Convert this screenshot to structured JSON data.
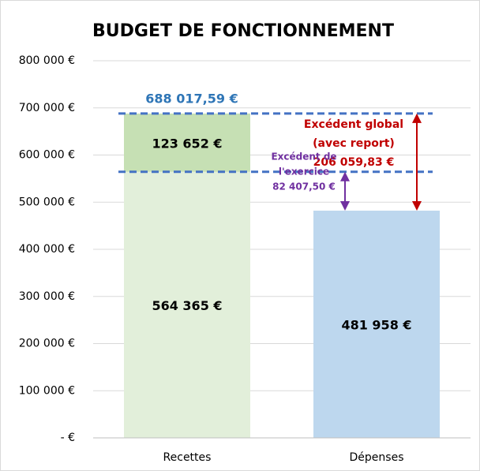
{
  "chart_data": {
    "type": "stacked_bar",
    "title": "BUDGET DE FONCTIONNEMENT",
    "categories": [
      "Recettes",
      "Dépenses"
    ],
    "series": [
      {
        "colors": [
          "#e2efda",
          "#bdd7ee"
        ],
        "values": [
          564365,
          481958
        ],
        "value_labels": [
          "564 365 €",
          "481 958 €"
        ]
      },
      {
        "colors": [
          "#c6e0b4",
          null
        ],
        "values": [
          123652,
          null
        ],
        "value_labels": [
          "123 652 €",
          null
        ]
      }
    ],
    "total": {
      "value": 688017.59,
      "label": "688 017,59 €",
      "color": "#2e75b6"
    },
    "annotations": [
      {
        "lines": [
          "Excédent global",
          "(avec report)"
        ],
        "value": 206059.83,
        "value_label": "206 059,83 €",
        "color": "#c00000"
      },
      {
        "lines": [
          "Excédent de",
          "l'exercice"
        ],
        "value": 82407.5,
        "value_label": "82 407,50 €",
        "color": "#7030a0"
      }
    ],
    "ylim": [
      0,
      800000
    ],
    "yticks": [
      {
        "value": 0,
        "label": "-   €"
      },
      {
        "value": 100000,
        "label": "100 000 €"
      },
      {
        "value": 200000,
        "label": "200 000 €"
      },
      {
        "value": 300000,
        "label": "300 000 €"
      },
      {
        "value": 400000,
        "label": "400 000 €"
      },
      {
        "value": 500000,
        "label": "500 000 €"
      },
      {
        "value": 600000,
        "label": "600 000 €"
      },
      {
        "value": 700000,
        "label": "700 000 €"
      },
      {
        "value": 800000,
        "label": "800 000 €"
      }
    ],
    "grid": true
  }
}
